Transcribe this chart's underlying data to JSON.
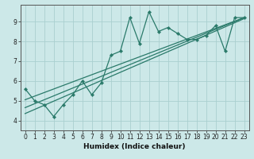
{
  "title": "",
  "xlabel": "Humidex (Indice chaleur)",
  "bg_color": "#cce8e8",
  "line_color": "#2a7a6a",
  "grid_color": "#aacfcf",
  "xlim": [
    -0.5,
    23.5
  ],
  "ylim": [
    3.5,
    9.85
  ],
  "xticks": [
    0,
    1,
    2,
    3,
    4,
    5,
    6,
    7,
    8,
    9,
    10,
    11,
    12,
    13,
    14,
    15,
    16,
    17,
    18,
    19,
    20,
    21,
    22,
    23
  ],
  "yticks": [
    4,
    5,
    6,
    7,
    8,
    9
  ],
  "data_line": {
    "x": [
      0,
      1,
      2,
      3,
      4,
      5,
      6,
      7,
      8,
      9,
      10,
      11,
      12,
      13,
      14,
      15,
      16,
      17,
      18,
      19,
      20,
      21,
      22,
      23
    ],
    "y": [
      5.6,
      5.0,
      4.8,
      4.2,
      4.8,
      5.3,
      6.0,
      5.3,
      5.9,
      7.3,
      7.5,
      9.2,
      7.9,
      9.5,
      8.5,
      8.7,
      8.4,
      8.1,
      8.1,
      8.3,
      8.8,
      7.5,
      9.2,
      9.2
    ]
  },
  "reg_line1": {
    "x": [
      0,
      23
    ],
    "y": [
      4.65,
      9.2
    ]
  },
  "reg_line2": {
    "x": [
      0,
      23
    ],
    "y": [
      5.05,
      9.2
    ]
  },
  "reg_line3": {
    "x": [
      0,
      23
    ],
    "y": [
      4.35,
      9.15
    ]
  },
  "tick_fontsize": 5.5,
  "xlabel_fontsize": 6.5,
  "spine_color": "#555555"
}
